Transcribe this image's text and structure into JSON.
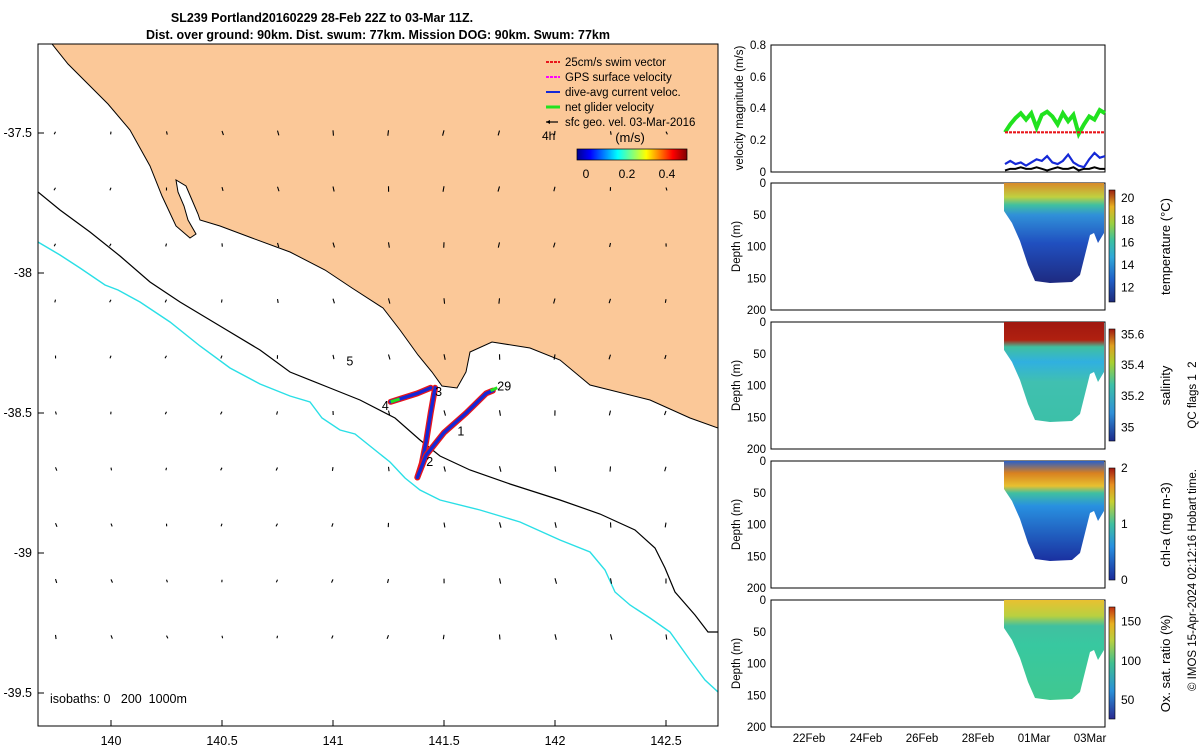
{
  "title": {
    "line1": "SL239 Portland20160229 28-Feb 22Z to 03-Mar 11Z.",
    "line2": "Dist. over ground: 90km. Dist. swum: 77km. Mission DOG: 90km. Swum: 77km"
  },
  "colors": {
    "land": "#fbc898",
    "isobath_200": "#000000",
    "isobath_1000": "#2adfe6",
    "swim_vector": "#e8161b",
    "gps_velocity": "#ff00ff",
    "dive_avg": "#1428d6",
    "net_velocity": "#21e21f",
    "geo_vel": "#000000"
  },
  "map": {
    "type": "map",
    "x_ticks": [
      "140",
      "140.5",
      "141",
      "141.5",
      "142",
      "142.5"
    ],
    "y_ticks": [
      "-37.5",
      "-38",
      "-38.5",
      "-39",
      "-39.5"
    ],
    "xlim": [
      139.65,
      142.75
    ],
    "ylim": [
      -39.55,
      -37.2
    ],
    "isobaths_label": "isobaths: 0   200  1000m",
    "legend": [
      {
        "key": "swim",
        "label": "25cm/s swim vector",
        "color": "#e8161b"
      },
      {
        "key": "gps",
        "label": "GPS surface velocity",
        "color": "#ff00ff"
      },
      {
        "key": "dive",
        "label": "dive-avg current veloc.",
        "color": "#1428d6"
      },
      {
        "key": "net",
        "label": "net glider velocity",
        "color": "#21e21f"
      },
      {
        "key": "geo",
        "label": "sfc geo. vel. 03-Mar-2016",
        "color": "#000000"
      }
    ],
    "legend_4h": "4h",
    "colorbar": {
      "label": "(m/s)",
      "ticks": [
        "0",
        "0.2",
        "0.4"
      ]
    },
    "day_labels": [
      {
        "text": "5",
        "lon": 141.06,
        "lat": -38.33
      },
      {
        "text": "4",
        "lon": 141.22,
        "lat": -38.49
      },
      {
        "text": "3",
        "lon": 141.46,
        "lat": -38.44
      },
      {
        "text": "29",
        "lon": 141.74,
        "lat": -38.42
      },
      {
        "text": "1",
        "lon": 141.56,
        "lat": -38.58
      },
      {
        "text": "2",
        "lon": 141.42,
        "lat": -38.69
      }
    ],
    "track_segments": [
      {
        "name": "leg-a",
        "points": [
          [
            141.46,
            -38.41
          ],
          [
            141.44,
            -38.5
          ],
          [
            141.42,
            -38.6
          ],
          [
            141.4,
            -38.68
          ],
          [
            141.38,
            -38.73
          ]
        ]
      },
      {
        "name": "leg-b",
        "points": [
          [
            141.38,
            -38.73
          ],
          [
            141.42,
            -38.65
          ],
          [
            141.5,
            -38.57
          ],
          [
            141.6,
            -38.5
          ],
          [
            141.69,
            -38.43
          ],
          [
            141.72,
            -38.42
          ]
        ]
      },
      {
        "name": "leg-c",
        "points": [
          [
            141.44,
            -38.41
          ],
          [
            141.38,
            -38.43
          ],
          [
            141.3,
            -38.45
          ],
          [
            141.26,
            -38.46
          ]
        ]
      }
    ]
  },
  "panels": {
    "velocity": {
      "ylabel": "velocity magnitude (m/s)",
      "y_ticks": [
        "0",
        "0.2",
        "0.4",
        "0.6",
        "0.8"
      ],
      "ylim": [
        0,
        0.8
      ],
      "series": [
        {
          "key": "net",
          "color": "#21e21f",
          "values": [
            0.25,
            0.3,
            0.34,
            0.37,
            0.33,
            0.37,
            0.28,
            0.36,
            0.38,
            0.35,
            0.3,
            0.37,
            0.32,
            0.36,
            0.24,
            0.3,
            0.35,
            0.33,
            0.39,
            0.37
          ]
        },
        {
          "key": "swim",
          "color": "#e8161b",
          "values": [
            0.25,
            0.25,
            0.25,
            0.25,
            0.25,
            0.25,
            0.25,
            0.25,
            0.25,
            0.25,
            0.25,
            0.25,
            0.25,
            0.25,
            0.25,
            0.25,
            0.25,
            0.25,
            0.25,
            0.25
          ]
        },
        {
          "key": "dive",
          "color": "#1428d6",
          "values": [
            0.05,
            0.07,
            0.05,
            0.06,
            0.04,
            0.06,
            0.08,
            0.07,
            0.1,
            0.06,
            0.05,
            0.07,
            0.11,
            0.06,
            0.04,
            0.03,
            0.08,
            0.12,
            0.09,
            0.1
          ]
        },
        {
          "key": "geo",
          "color": "#000000",
          "values": [
            0.01,
            0.02,
            0.02,
            0.03,
            0.02,
            0.02,
            0.03,
            0.02,
            0.01,
            0.02,
            0.03,
            0.02,
            0.02,
            0.03,
            0.01,
            0.02,
            0.02,
            0.03,
            0.02,
            0.02
          ]
        }
      ]
    },
    "sections": [
      {
        "key": "temperature",
        "ylabel": "Depth (m)",
        "cblabel": "temperature (°C)",
        "cb_ticks": [
          "12",
          "14",
          "16",
          "18",
          "20"
        ],
        "depth_ticks": [
          "0",
          "50",
          "100",
          "150",
          "200"
        ]
      },
      {
        "key": "salinity",
        "ylabel": "Depth (m)",
        "cblabel": "salinity",
        "cb_ticks": [
          "35",
          "35.2",
          "35.4",
          "35.6"
        ],
        "depth_ticks": [
          "0",
          "50",
          "100",
          "150",
          "200"
        ]
      },
      {
        "key": "chla",
        "ylabel": "Depth (m)",
        "cblabel": "chl-a (mg m-3)",
        "cb_ticks": [
          "0",
          "1",
          "2"
        ],
        "depth_ticks": [
          "0",
          "50",
          "100",
          "150",
          "200"
        ]
      },
      {
        "key": "oxygen",
        "ylabel": "Depth (m)",
        "cblabel": "Ox. sat. ratio (%)",
        "cb_ticks": [
          "50",
          "100",
          "150"
        ],
        "depth_ticks": [
          "0",
          "50",
          "100",
          "150",
          "200"
        ]
      }
    ],
    "qc_flags": "QC flags 1  2",
    "footer": "© IMOS 15-Apr-2024 02:12:16 Hobart time.",
    "time_ticks": [
      "22Feb",
      "24Feb",
      "26Feb",
      "28Feb",
      "01Mar",
      "03Mar"
    ]
  }
}
